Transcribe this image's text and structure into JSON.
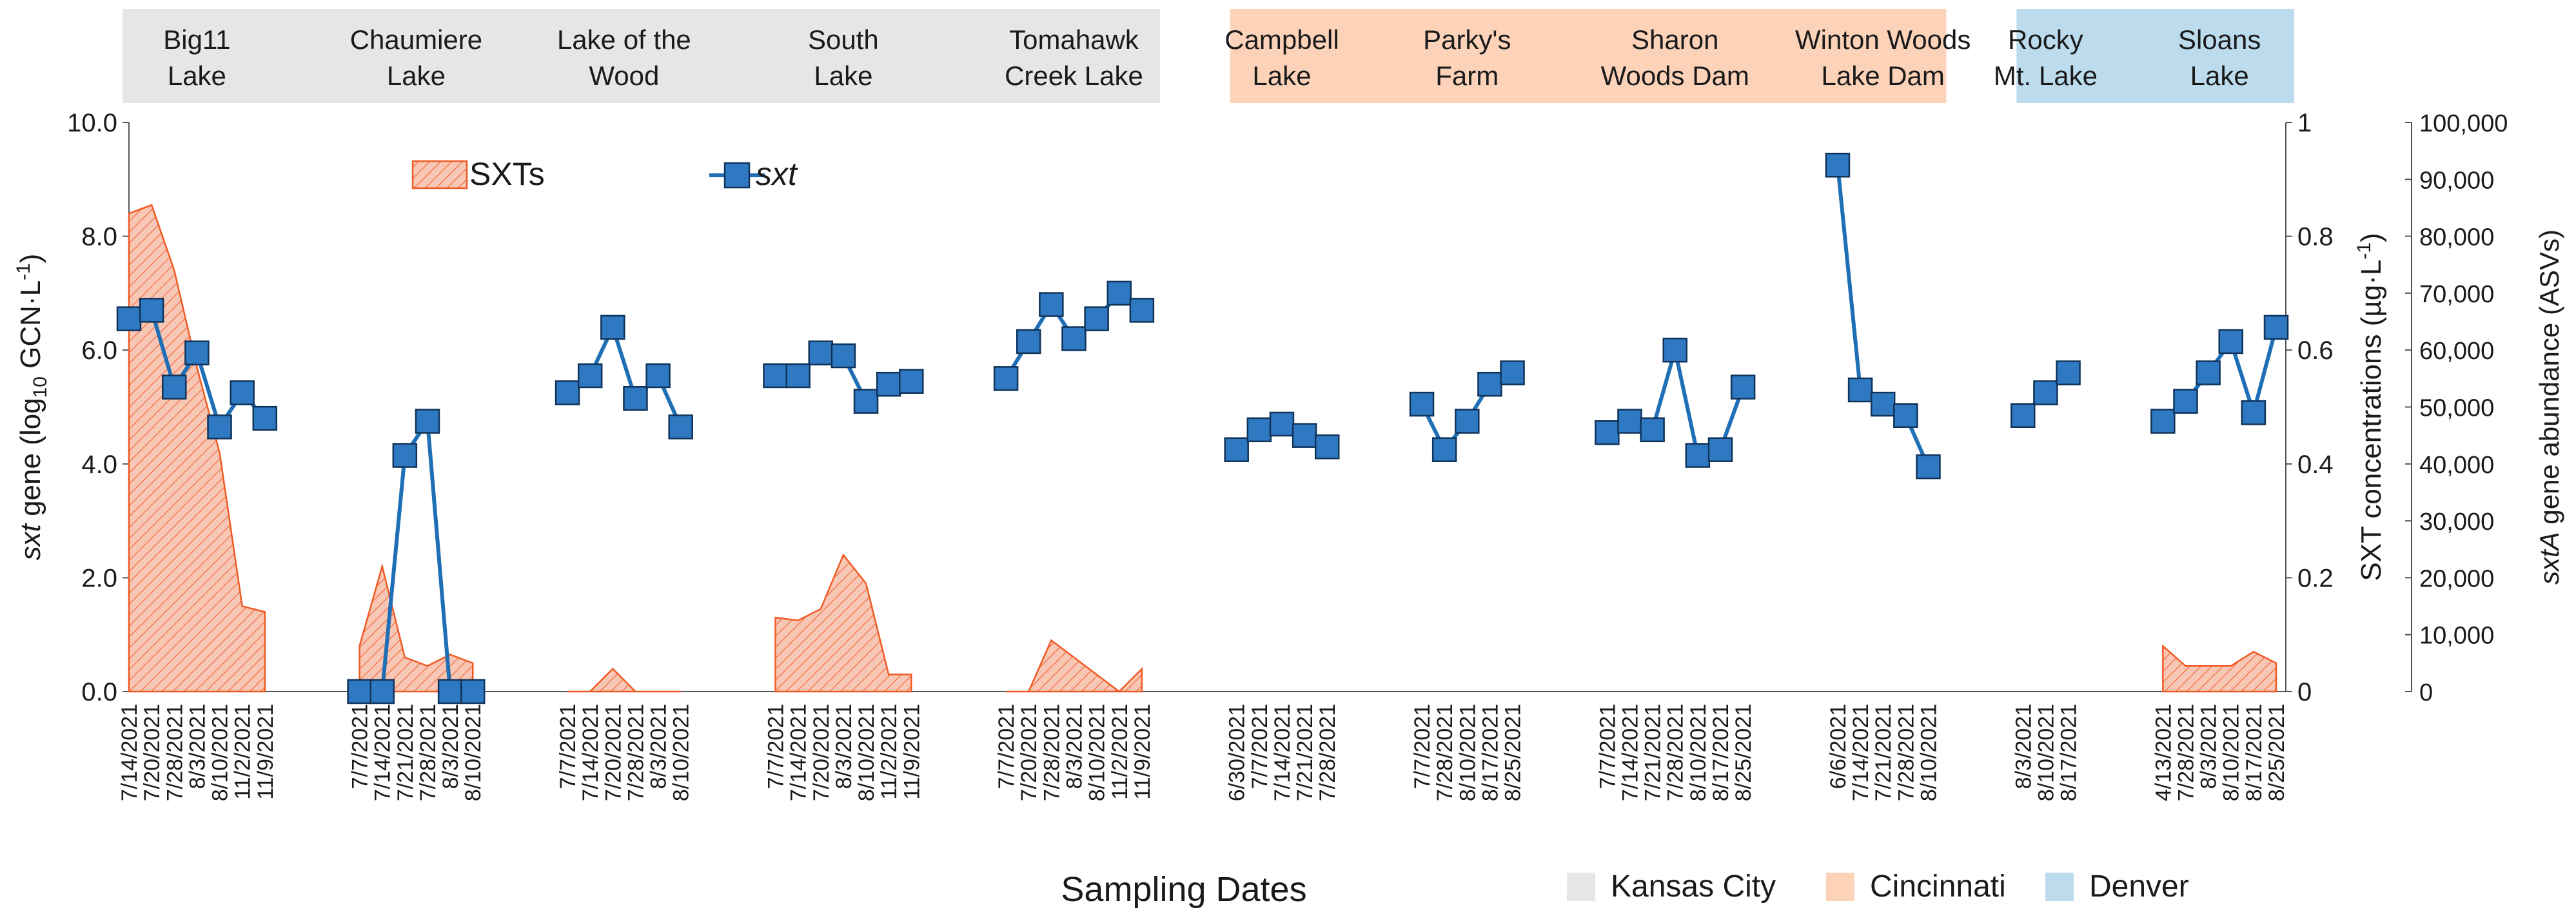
{
  "chart_data": {
    "type": "line",
    "xlabel": "Sampling Dates",
    "ylabel_left": {
      "prefix": "sxt",
      "middle": " gene  (log",
      "sub": "10",
      "suffix": " GCN·L",
      "sup": "-1",
      "end": ")"
    },
    "ylabel_right1": {
      "text": "SXT concentrations  (µg·L",
      "sup": "-1",
      "end": ")"
    },
    "ylabel_right2": {
      "prefix": "sxtA",
      "suffix": " gene abundance (ASVs)"
    },
    "y_left": {
      "min": 0,
      "max": 10,
      "ticks": [
        "0.0",
        "2.0",
        "4.0",
        "6.0",
        "8.0",
        "10.0"
      ]
    },
    "y_right1": {
      "min": 0,
      "max": 1,
      "ticks": [
        "0",
        "0.2",
        "0.4",
        "0.6",
        "0.8",
        "1"
      ]
    },
    "y_right2": {
      "min": 0,
      "max": 100000,
      "ticks": [
        "0",
        "10,000",
        "20,000",
        "30,000",
        "40,000",
        "50,000",
        "60,000",
        "70,000",
        "80,000",
        "90,000",
        "100,000"
      ]
    },
    "legend": {
      "area": "SXTs",
      "line": "sxt"
    },
    "region_legend": [
      {
        "name": "Kansas City",
        "color": "#e6e6e6"
      },
      {
        "name": "Cincinnati",
        "color": "#fcd2b8"
      },
      {
        "name": "Denver",
        "color": "#bcdcee"
      }
    ],
    "colors": {
      "line": "#1f6fb6",
      "marker": "#2f79c3",
      "marker_edge": "#10335a",
      "area_fill": "#f7c6b4",
      "area_stroke": "#f05a24"
    },
    "sites": [
      {
        "name": [
          "Big11",
          "Lake"
        ],
        "region": "Kansas City",
        "dates": [
          "7/14/2021",
          "7/20/2021",
          "7/28/2021",
          "8/3/2021",
          "8/10/2021",
          "11/2/2021",
          "11/9/2021"
        ],
        "sxt": [
          6.55,
          6.7,
          5.35,
          5.95,
          4.65,
          5.25,
          4.8
        ],
        "sxts": [
          0.84,
          0.855,
          0.74,
          0.57,
          0.42,
          0.15,
          0.14
        ]
      },
      {
        "name": [
          "Chaumiere",
          "Lake"
        ],
        "region": "Kansas City",
        "dates": [
          "7/7/2021",
          "7/14/2021",
          "7/21/2021",
          "7/28/2021",
          "8/3/2021",
          "8/10/2021"
        ],
        "sxt": [
          0.0,
          0.0,
          4.15,
          4.75,
          0.0,
          0.0
        ],
        "sxts": [
          0.08,
          0.22,
          0.06,
          0.045,
          0.065,
          0.05
        ]
      },
      {
        "name": [
          "Lake of the",
          "Wood"
        ],
        "region": "Kansas City",
        "dates": [
          "7/7/2021",
          "7/14/2021",
          "7/20/2021",
          "7/28/2021",
          "8/3/2021",
          "8/10/2021"
        ],
        "sxt": [
          5.25,
          5.55,
          6.4,
          5.15,
          5.55,
          4.65
        ],
        "sxts": [
          0.0,
          0.0,
          0.04,
          0.0,
          0.0,
          0.0
        ]
      },
      {
        "name": [
          "South",
          "Lake"
        ],
        "region": "Kansas City",
        "dates": [
          "7/7/2021",
          "7/14/2021",
          "7/20/2021",
          "8/3/2021",
          "8/10/2021",
          "11/2/2021",
          "11/9/2021"
        ],
        "sxt": [
          5.55,
          5.55,
          5.95,
          5.9,
          5.1,
          5.4,
          5.45
        ],
        "sxts": [
          0.13,
          0.125,
          0.145,
          0.24,
          0.19,
          0.03,
          0.03
        ]
      },
      {
        "name": [
          "Tomahawk",
          "Creek Lake"
        ],
        "region": "Kansas City",
        "dates": [
          "7/7/2021",
          "7/20/2021",
          "7/28/2021",
          "8/3/2021",
          "8/10/2021",
          "11/2/2021",
          "11/9/2021"
        ],
        "sxt": [
          5.5,
          6.15,
          6.8,
          6.2,
          6.55,
          7.0,
          6.7
        ],
        "sxts": [
          0.0,
          0.0,
          0.09,
          0.06,
          0.03,
          0.0,
          0.04
        ]
      },
      {
        "name": [
          "Campbell",
          "Lake"
        ],
        "region": "Cincinnati",
        "dates": [
          "6/30/2021",
          "7/7/2021",
          "7/14/2021",
          "7/21/2021",
          "7/28/2021"
        ],
        "sxt": [
          4.25,
          4.6,
          4.7,
          4.5,
          4.3
        ],
        "sxts": [
          0,
          0,
          0,
          0,
          0
        ]
      },
      {
        "name": [
          "Parky's",
          "Farm"
        ],
        "region": "Cincinnati",
        "dates": [
          "7/7/2021",
          "7/28/2021",
          "8/10/2021",
          "8/17/2021",
          "8/25/2021"
        ],
        "sxt": [
          5.05,
          4.25,
          4.75,
          5.4,
          5.6
        ],
        "sxts": [
          0,
          0,
          0,
          0,
          0
        ]
      },
      {
        "name": [
          "Sharon",
          "Woods Dam"
        ],
        "region": "Cincinnati",
        "dates": [
          "7/7/2021",
          "7/14/2021",
          "7/21/2021",
          "7/28/2021",
          "8/10/2021",
          "8/17/2021",
          "8/25/2021"
        ],
        "sxt": [
          4.55,
          4.75,
          4.6,
          6.0,
          4.15,
          4.25,
          5.35
        ],
        "sxts": [
          0,
          0,
          0,
          0,
          0,
          0,
          0
        ]
      },
      {
        "name": [
          "Winton Woods",
          "Lake Dam"
        ],
        "region": "Cincinnati",
        "dates": [
          "6/6/2021",
          "7/14/2021",
          "7/21/2021",
          "7/28/2021",
          "8/10/2021"
        ],
        "sxt": [
          9.25,
          5.3,
          5.05,
          4.85,
          3.95
        ],
        "sxts": [
          0,
          0,
          0,
          0,
          0
        ]
      },
      {
        "name": [
          "Rocky",
          "Mt. Lake"
        ],
        "region": "Denver",
        "dates": [
          "8/3/2021",
          "8/10/2021",
          "8/17/2021"
        ],
        "sxt": [
          4.85,
          5.25,
          5.6
        ],
        "sxts": [
          0,
          0,
          0
        ]
      },
      {
        "name": [
          "Sloans",
          "Lake"
        ],
        "region": "Denver",
        "dates": [
          "4/13/2021",
          "7/28/2021",
          "8/3/2021",
          "8/10/2021",
          "8/17/2021",
          "8/25/2021"
        ],
        "sxt": [
          4.75,
          5.1,
          5.6,
          6.15,
          4.9,
          6.4
        ],
        "sxts": [
          0.08,
          0.045,
          0.045,
          0.045,
          0.07,
          0.05
        ]
      }
    ]
  }
}
